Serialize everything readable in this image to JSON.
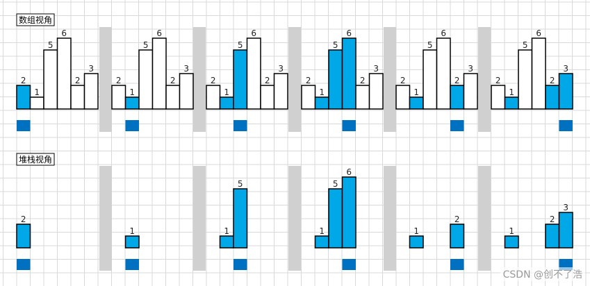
{
  "sections": [
    {
      "title": "数组视角",
      "frames": [
        {
          "bars": [
            {
              "value": 2,
              "state": "blue"
            },
            {
              "value": 1,
              "state": "white"
            },
            {
              "value": 5,
              "state": "white"
            },
            {
              "value": 6,
              "state": "white"
            },
            {
              "value": 2,
              "state": "white"
            },
            {
              "value": 3,
              "state": "white"
            }
          ]
        },
        {
          "bars": [
            {
              "value": 2,
              "state": "white"
            },
            {
              "value": 1,
              "state": "blue"
            },
            {
              "value": 5,
              "state": "white"
            },
            {
              "value": 6,
              "state": "white"
            },
            {
              "value": 2,
              "state": "white"
            },
            {
              "value": 3,
              "state": "white"
            }
          ]
        },
        {
          "bars": [
            {
              "value": 2,
              "state": "white"
            },
            {
              "value": 1,
              "state": "blue"
            },
            {
              "value": 5,
              "state": "blue"
            },
            {
              "value": 6,
              "state": "white"
            },
            {
              "value": 2,
              "state": "white"
            },
            {
              "value": 3,
              "state": "white"
            }
          ]
        },
        {
          "bars": [
            {
              "value": 2,
              "state": "white"
            },
            {
              "value": 1,
              "state": "blue"
            },
            {
              "value": 5,
              "state": "blue"
            },
            {
              "value": 6,
              "state": "blue"
            },
            {
              "value": 2,
              "state": "white"
            },
            {
              "value": 3,
              "state": "white"
            }
          ]
        },
        {
          "bars": [
            {
              "value": 2,
              "state": "white"
            },
            {
              "value": 1,
              "state": "blue"
            },
            {
              "value": 5,
              "state": "white"
            },
            {
              "value": 6,
              "state": "white"
            },
            {
              "value": 2,
              "state": "blue"
            },
            {
              "value": 3,
              "state": "white"
            }
          ]
        },
        {
          "bars": [
            {
              "value": 2,
              "state": "white"
            },
            {
              "value": 1,
              "state": "blue"
            },
            {
              "value": 5,
              "state": "white"
            },
            {
              "value": 6,
              "state": "white"
            },
            {
              "value": 2,
              "state": "blue"
            },
            {
              "value": 3,
              "state": "blue"
            }
          ]
        }
      ],
      "pointers": [
        0,
        1,
        2,
        3,
        4,
        5
      ]
    },
    {
      "title": "堆栈视角",
      "frames": [
        {
          "bars": [
            {
              "value": 2,
              "state": "blue"
            },
            {
              "value": null
            },
            {
              "value": null
            },
            {
              "value": null
            },
            {
              "value": null
            },
            {
              "value": null
            }
          ]
        },
        {
          "bars": [
            {
              "value": null
            },
            {
              "value": 1,
              "state": "blue"
            },
            {
              "value": null
            },
            {
              "value": null
            },
            {
              "value": null
            },
            {
              "value": null
            }
          ]
        },
        {
          "bars": [
            {
              "value": null
            },
            {
              "value": 1,
              "state": "blue"
            },
            {
              "value": 5,
              "state": "blue"
            },
            {
              "value": null
            },
            {
              "value": null
            },
            {
              "value": null
            }
          ]
        },
        {
          "bars": [
            {
              "value": null
            },
            {
              "value": 1,
              "state": "blue"
            },
            {
              "value": 5,
              "state": "blue"
            },
            {
              "value": 6,
              "state": "blue"
            },
            {
              "value": null
            },
            {
              "value": null
            }
          ]
        },
        {
          "bars": [
            {
              "value": null
            },
            {
              "value": 1,
              "state": "blue"
            },
            {
              "value": null
            },
            {
              "value": null
            },
            {
              "value": 2,
              "state": "blue"
            },
            {
              "value": null
            }
          ]
        },
        {
          "bars": [
            {
              "value": null
            },
            {
              "value": 1,
              "state": "blue"
            },
            {
              "value": null
            },
            {
              "value": null
            },
            {
              "value": 2,
              "state": "blue"
            },
            {
              "value": 3,
              "state": "blue"
            }
          ]
        }
      ],
      "pointers": [
        0,
        1,
        2,
        3,
        4,
        5
      ]
    }
  ],
  "watermark": "CSDN @创不了浩",
  "colors": {
    "bar_fill": "#00a8e8",
    "bar_empty": "#ffffff",
    "pointer": "#0070c0",
    "separator": "#d0d0d0",
    "grid": "#d9d9d9"
  }
}
